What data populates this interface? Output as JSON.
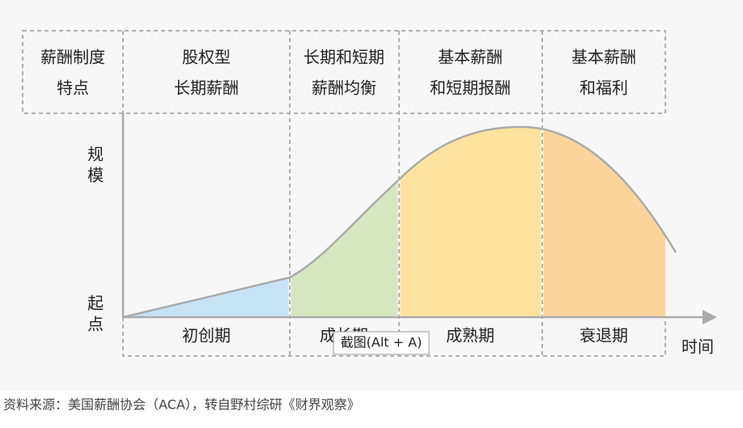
{
  "header_cells": [
    [
      "薪酬制度",
      "特点"
    ],
    [
      "股权型",
      "长期薪酬"
    ],
    [
      "长期和短期",
      "薪酬均衡"
    ],
    [
      "基本薪酬",
      "和短期报酬"
    ],
    [
      "基本薪酬",
      "和福利"
    ]
  ],
  "y_axis": {
    "top_label": [
      "规",
      "模"
    ],
    "bottom_label": [
      "起",
      "点"
    ]
  },
  "x_axis_label": "时间",
  "stages": [
    "初创期",
    "成长期",
    "成熟期",
    "衰退期"
  ],
  "tooltip": "截图(Alt + A)",
  "source": "资料来源：美国薪酬协会（ACA），转自野村综研《财界观察》"
}
